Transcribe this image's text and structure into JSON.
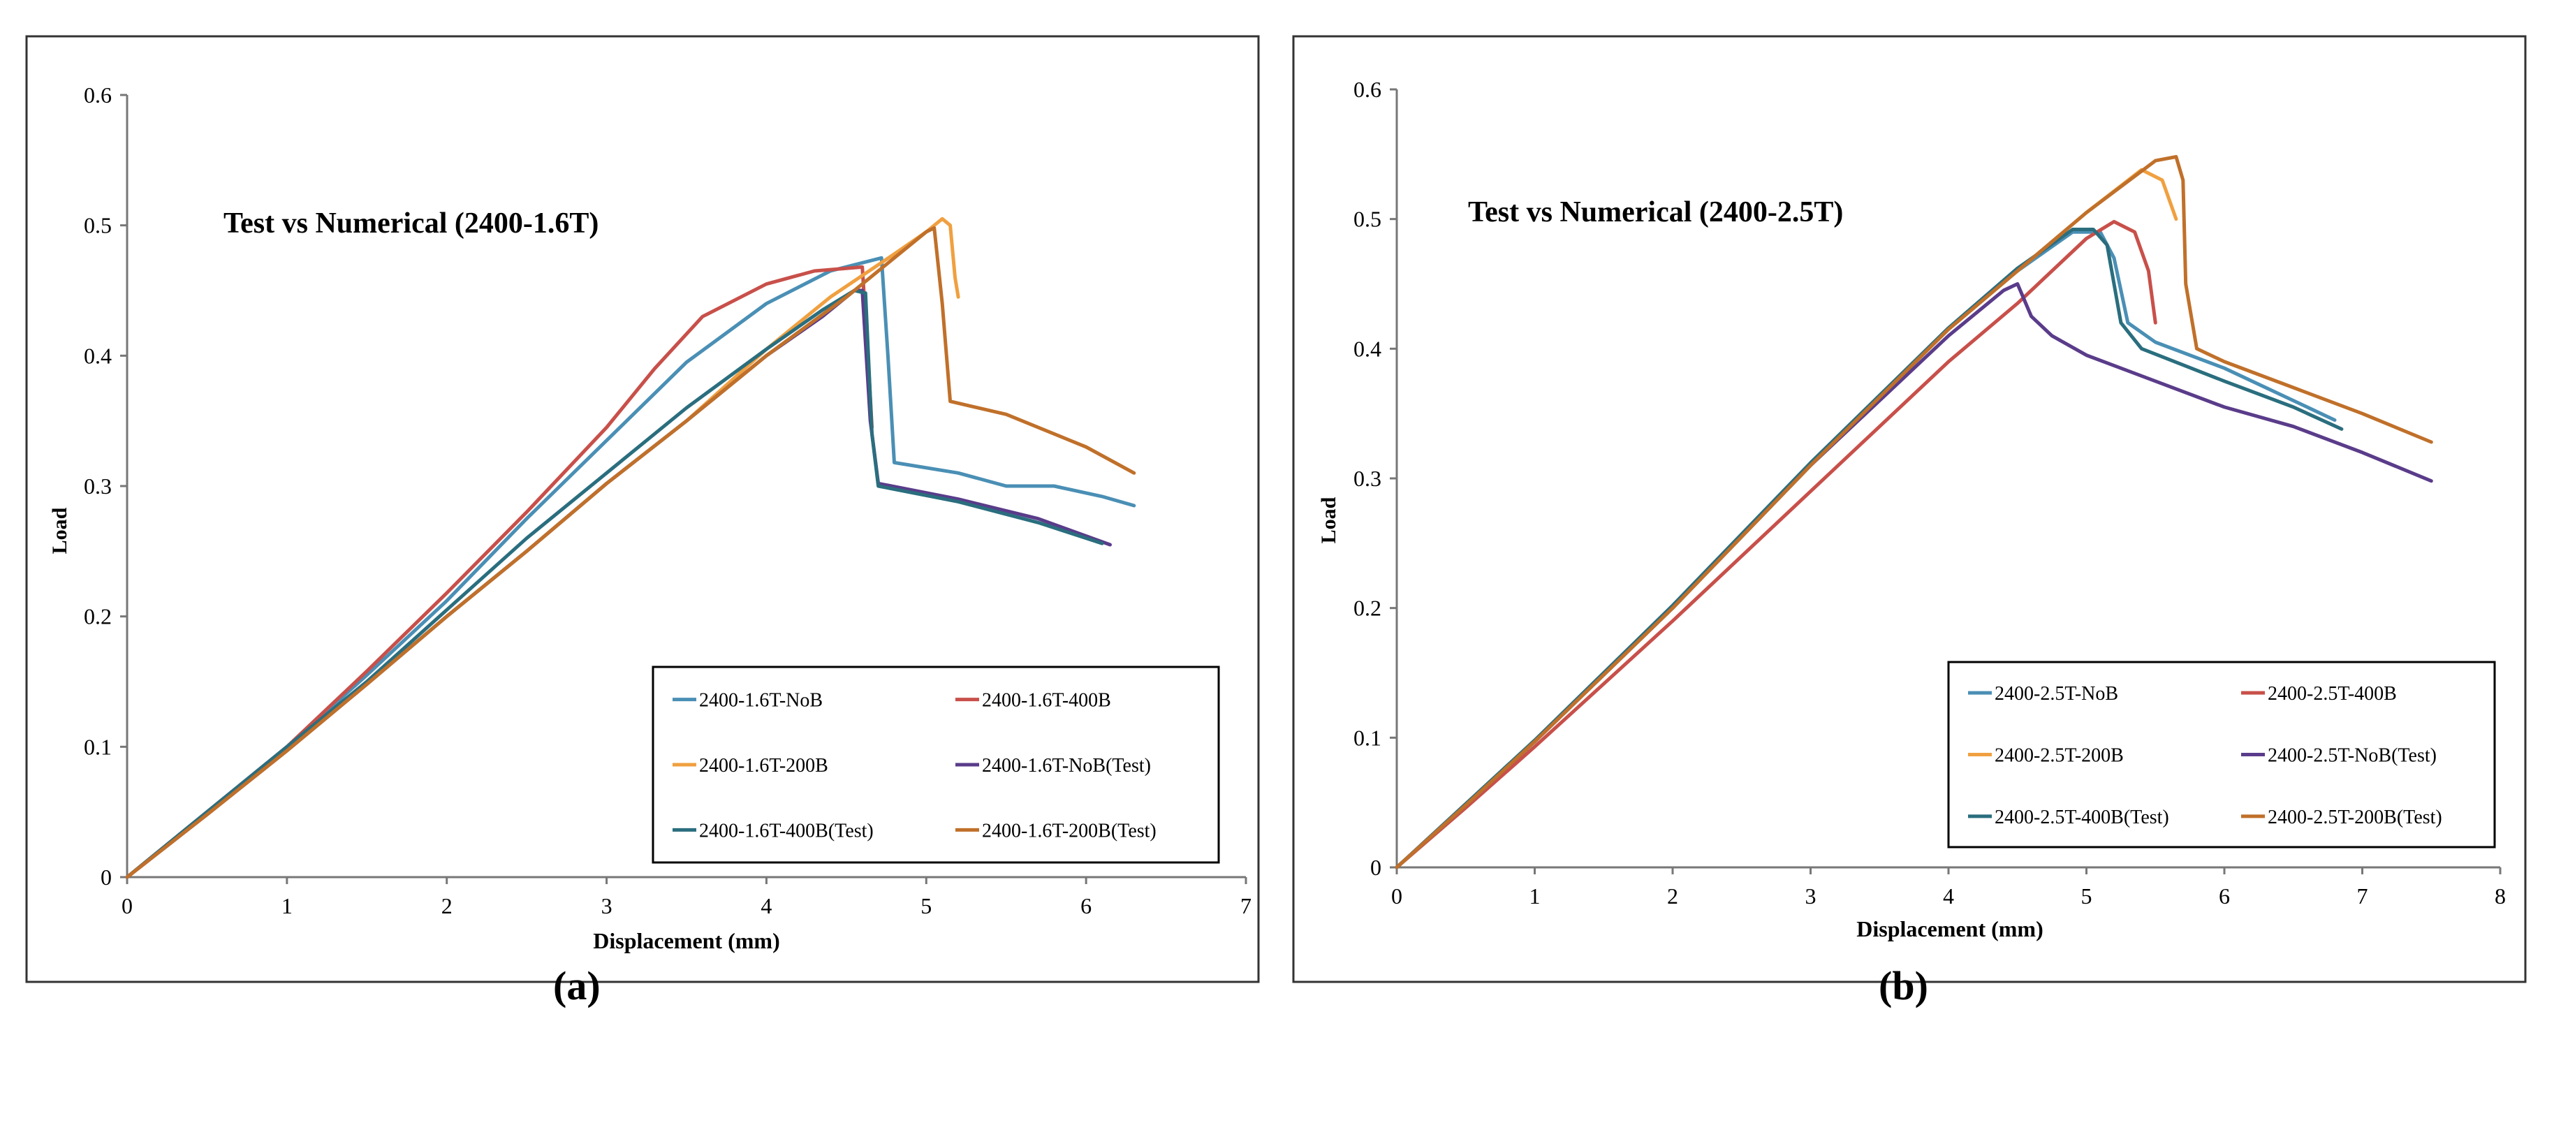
{
  "chart_data": [
    {
      "type": "line",
      "title": "Test vs Numerical (2400-1.6T)",
      "xlabel": "Displacement  (mm)",
      "ylabel": "Load",
      "xlim": [
        0,
        7
      ],
      "ylim": [
        0,
        0.6
      ],
      "xticks": [
        "0",
        "1",
        "2",
        "3",
        "4",
        "5",
        "6",
        "7"
      ],
      "yticks": [
        "0",
        "0.1",
        "0.2",
        "0.3",
        "0.4",
        "0.5",
        "0.6"
      ],
      "grid": false,
      "legend_position": "bottom-right",
      "caption": "(a)",
      "series": [
        {
          "name": "2400-1.6T-NoB",
          "color": "#4a8fb5",
          "x": [
            0,
            0.5,
            1,
            1.5,
            2,
            2.5,
            3,
            3.5,
            4,
            4.4,
            4.72,
            4.76,
            4.8,
            5.2,
            5.5,
            5.8,
            6.1,
            6.3
          ],
          "y": [
            0,
            0.05,
            0.1,
            0.155,
            0.212,
            0.275,
            0.335,
            0.395,
            0.44,
            0.465,
            0.475,
            0.4,
            0.318,
            0.31,
            0.3,
            0.3,
            0.292,
            0.285
          ]
        },
        {
          "name": "2400-1.6T-400B",
          "color": "#c8504a",
          "x": [
            0,
            0.5,
            1,
            1.5,
            2,
            2.5,
            3,
            3.3,
            3.6,
            4,
            4.3,
            4.6,
            4.64,
            4.66
          ],
          "y": [
            0,
            0.05,
            0.1,
            0.158,
            0.218,
            0.28,
            0.345,
            0.39,
            0.43,
            0.455,
            0.465,
            0.468,
            0.39,
            0.345
          ]
        },
        {
          "name": "2400-1.6T-200B",
          "color": "#f0a040",
          "x": [
            0,
            0.5,
            1,
            1.5,
            2,
            2.5,
            3,
            3.5,
            4,
            4.4,
            4.8,
            5.0,
            5.1,
            5.15,
            5.18,
            5.2
          ],
          "y": [
            0,
            0.048,
            0.097,
            0.148,
            0.2,
            0.25,
            0.302,
            0.35,
            0.405,
            0.445,
            0.478,
            0.495,
            0.505,
            0.5,
            0.46,
            0.445
          ]
        },
        {
          "name": "2400-1.6T-NoB(Test)",
          "color": "#5a3c8a",
          "x": [
            0,
            0.5,
            1,
            1.5,
            2,
            2.5,
            3,
            3.5,
            4,
            4.35,
            4.55,
            4.6,
            4.65,
            4.7,
            5.2,
            5.7,
            6.15
          ],
          "y": [
            0,
            0.048,
            0.097,
            0.148,
            0.2,
            0.25,
            0.302,
            0.35,
            0.4,
            0.43,
            0.45,
            0.45,
            0.35,
            0.302,
            0.29,
            0.275,
            0.255
          ]
        },
        {
          "name": "2400-1.6T-400B(Test)",
          "color": "#2a6e7e",
          "x": [
            0,
            0.5,
            1,
            1.5,
            2,
            2.5,
            3,
            3.5,
            4,
            4.35,
            4.55,
            4.62,
            4.66,
            4.7,
            5.2,
            5.7,
            6.1
          ],
          "y": [
            0,
            0.05,
            0.1,
            0.15,
            0.205,
            0.26,
            0.31,
            0.36,
            0.405,
            0.435,
            0.45,
            0.448,
            0.34,
            0.3,
            0.288,
            0.272,
            0.256
          ]
        },
        {
          "name": "2400-1.6T-200B(Test)",
          "color": "#c0702a",
          "x": [
            0,
            0.5,
            1,
            1.5,
            2,
            2.5,
            3,
            3.5,
            4,
            4.5,
            4.8,
            5.0,
            5.05,
            5.1,
            5.15,
            5.5,
            6.0,
            6.3
          ],
          "y": [
            0,
            0.048,
            0.097,
            0.148,
            0.2,
            0.25,
            0.302,
            0.35,
            0.4,
            0.445,
            0.475,
            0.495,
            0.498,
            0.44,
            0.365,
            0.355,
            0.33,
            0.31
          ]
        }
      ]
    },
    {
      "type": "line",
      "title": "Test vs Numerical (2400-2.5T)",
      "xlabel": "Displacement  (mm)",
      "ylabel": "Load",
      "xlim": [
        0,
        8
      ],
      "ylim": [
        0,
        0.6
      ],
      "xticks": [
        "0",
        "1",
        "2",
        "3",
        "4",
        "5",
        "6",
        "7",
        "8"
      ],
      "yticks": [
        "0",
        "0.1",
        "0.2",
        "0.3",
        "0.4",
        "0.5",
        "0.6"
      ],
      "grid": false,
      "legend_position": "bottom-right",
      "caption": "(b)",
      "series": [
        {
          "name": "2400-2.5T-NoB",
          "color": "#4a8fb5",
          "x": [
            0,
            0.5,
            1,
            2,
            3,
            4,
            4.5,
            4.9,
            5.1,
            5.2,
            5.3,
            5.5,
            6,
            6.5,
            6.8
          ],
          "y": [
            0,
            0.048,
            0.097,
            0.2,
            0.31,
            0.415,
            0.46,
            0.49,
            0.49,
            0.47,
            0.42,
            0.405,
            0.385,
            0.36,
            0.345
          ]
        },
        {
          "name": "2400-2.5T-400B",
          "color": "#c8504a",
          "x": [
            0,
            0.5,
            1,
            2,
            3,
            4,
            4.5,
            5.0,
            5.2,
            5.35,
            5.45,
            5.5
          ],
          "y": [
            0,
            0.046,
            0.093,
            0.19,
            0.29,
            0.39,
            0.435,
            0.485,
            0.498,
            0.49,
            0.46,
            0.42
          ]
        },
        {
          "name": "2400-2.5T-200B",
          "color": "#f0a040",
          "x": [
            0,
            0.5,
            1,
            2,
            3,
            4,
            4.5,
            5.0,
            5.4,
            5.55,
            5.65
          ],
          "y": [
            0,
            0.048,
            0.097,
            0.2,
            0.31,
            0.415,
            0.46,
            0.505,
            0.538,
            0.53,
            0.5
          ]
        },
        {
          "name": "2400-2.5T-NoB(Test)",
          "color": "#5a3c8a",
          "x": [
            0,
            0.5,
            1,
            2,
            3,
            4,
            4.4,
            4.5,
            4.6,
            4.75,
            5.0,
            5.5,
            6,
            6.5,
            7,
            7.5
          ],
          "y": [
            0,
            0.048,
            0.097,
            0.2,
            0.31,
            0.41,
            0.445,
            0.45,
            0.425,
            0.41,
            0.395,
            0.375,
            0.355,
            0.34,
            0.32,
            0.298
          ]
        },
        {
          "name": "2400-2.5T-400B(Test)",
          "color": "#2a6e7e",
          "x": [
            0,
            0.5,
            1,
            2,
            3,
            4,
            4.5,
            4.9,
            5.05,
            5.15,
            5.25,
            5.4,
            6.0,
            6.5,
            6.85
          ],
          "y": [
            0,
            0.049,
            0.098,
            0.202,
            0.312,
            0.416,
            0.462,
            0.492,
            0.492,
            0.48,
            0.42,
            0.4,
            0.375,
            0.355,
            0.338
          ]
        },
        {
          "name": "2400-2.5T-200B(Test)",
          "color": "#c0702a",
          "x": [
            0,
            0.5,
            1,
            2,
            3,
            4,
            4.5,
            5.0,
            5.5,
            5.65,
            5.7,
            5.72,
            5.8,
            6.0,
            6.5,
            7.0,
            7.5
          ],
          "y": [
            0,
            0.048,
            0.097,
            0.2,
            0.31,
            0.415,
            0.46,
            0.505,
            0.545,
            0.548,
            0.53,
            0.45,
            0.4,
            0.39,
            0.37,
            0.35,
            0.328
          ]
        }
      ]
    }
  ]
}
